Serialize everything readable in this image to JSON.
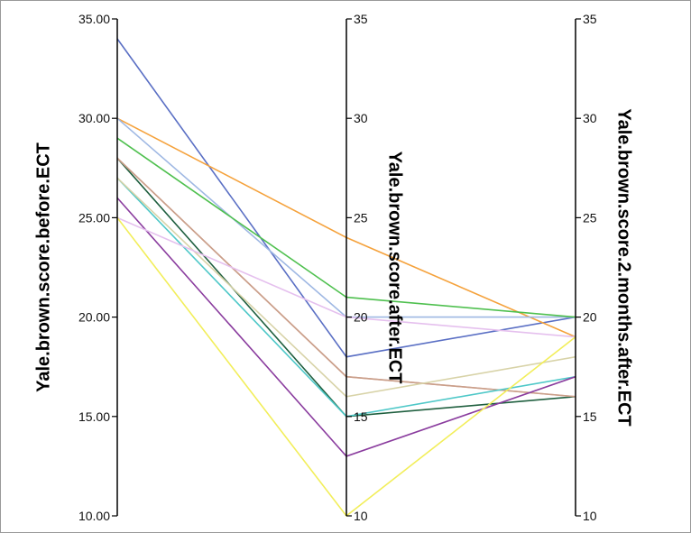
{
  "chart_data": {
    "type": "line",
    "chart_subtype": "parallel-coordinates",
    "axes": [
      {
        "label": "Yale.brown.score.before.ECT",
        "ylim": [
          10,
          35
        ],
        "ticks": [
          10,
          15,
          20,
          25,
          30,
          35
        ],
        "tick_labels": [
          "10.00",
          "15.00",
          "20.00",
          "25.00",
          "30.00",
          "35.00"
        ]
      },
      {
        "label": "Yale.brown.score.after.ECT",
        "ylim": [
          10,
          35
        ],
        "ticks": [
          10,
          15,
          20,
          25,
          30,
          35
        ],
        "tick_labels": [
          "10",
          "15",
          "20",
          "25",
          "30",
          "35"
        ]
      },
      {
        "label": "Yale.brown.score.2.months.after.ECT",
        "ylim": [
          10,
          35
        ],
        "ticks": [
          10,
          15,
          20,
          25,
          30,
          35
        ],
        "tick_labels": [
          "10",
          "15",
          "20",
          "25",
          "30",
          "35"
        ]
      }
    ],
    "series": [
      {
        "values": [
          34,
          18,
          20
        ],
        "color": "#5a6fc4"
      },
      {
        "values": [
          30,
          24,
          19
        ],
        "color": "#f5a23c"
      },
      {
        "values": [
          30,
          20,
          20
        ],
        "color": "#9fb8e3"
      },
      {
        "values": [
          29,
          21,
          20
        ],
        "color": "#4fc04f"
      },
      {
        "values": [
          28,
          15,
          16
        ],
        "color": "#1f5f3f"
      },
      {
        "values": [
          28,
          17,
          16
        ],
        "color": "#e8a0a0"
      },
      {
        "values": [
          28,
          17,
          16
        ],
        "color": "#c9a08a"
      },
      {
        "values": [
          27,
          15,
          17
        ],
        "color": "#4fc8c8"
      },
      {
        "values": [
          27,
          16,
          18
        ],
        "color": "#d8d3a8"
      },
      {
        "values": [
          26,
          13,
          17
        ],
        "color": "#8a3c9e"
      },
      {
        "values": [
          25,
          20,
          19
        ],
        "color": "#e5c0ee"
      },
      {
        "values": [
          25,
          10,
          19
        ],
        "color": "#f2ee5a"
      }
    ],
    "grid": false,
    "legend": "none"
  }
}
